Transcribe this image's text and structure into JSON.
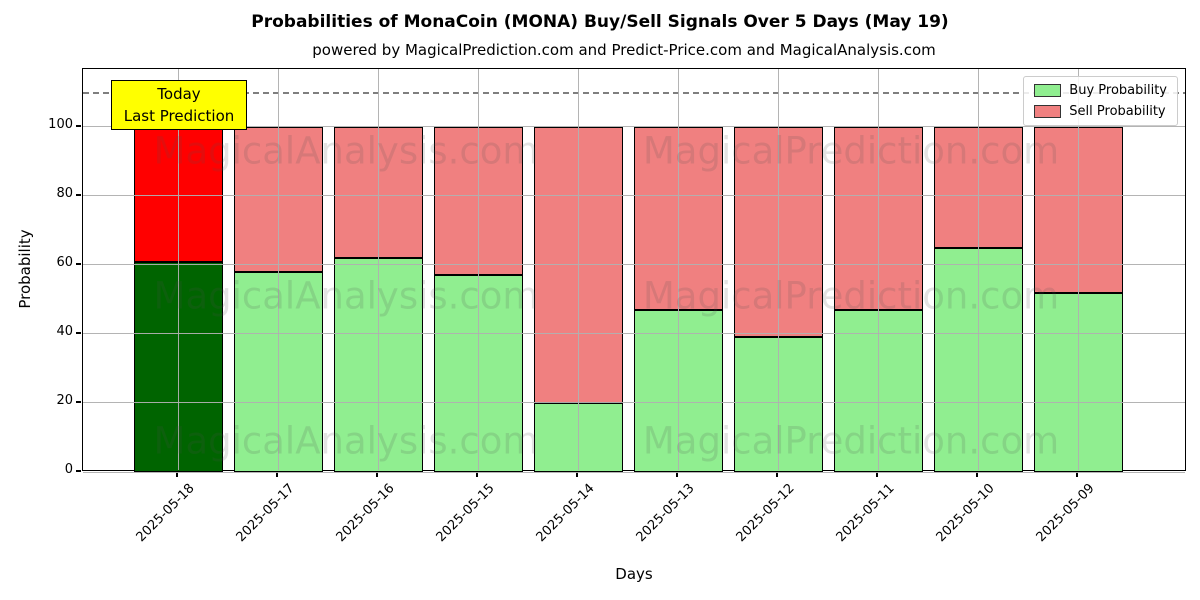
{
  "title": "Probabilities of MonaCoin (MONA) Buy/Sell Signals Over 5 Days (May 19)",
  "subtitle": "powered by MagicalPrediction.com and Predict-Price.com and MagicalAnalysis.com",
  "annotation": {
    "line1": "Today",
    "line2": "Last Prediction",
    "bg_color": "#ffff00"
  },
  "legend": [
    {
      "label": "Buy Probability",
      "color": "#90ee90"
    },
    {
      "label": "Sell Probability",
      "color": "#f08080"
    }
  ],
  "watermarks": {
    "texts": [
      "MagicalAnalysis.com",
      "MagicalPrediction.com"
    ]
  },
  "chart_data": {
    "type": "bar",
    "stacked": true,
    "title": "Probabilities of MonaCoin (MONA) Buy/Sell Signals Over 5 Days (May 19)",
    "xlabel": "Days",
    "ylabel": "Probability",
    "categories": [
      "2025-05-18",
      "2025-05-17",
      "2025-05-16",
      "2025-05-15",
      "2025-05-14",
      "2025-05-13",
      "2025-05-12",
      "2025-05-11",
      "2025-05-10",
      "2025-05-09"
    ],
    "series": [
      {
        "name": "Buy Probability",
        "values": [
          61,
          58,
          62,
          57,
          20,
          47,
          39,
          47,
          65,
          52
        ],
        "color": "#90ee90",
        "highlight_color": "#006400"
      },
      {
        "name": "Sell Probability",
        "values": [
          39,
          42,
          38,
          43,
          80,
          53,
          61,
          53,
          35,
          48
        ],
        "color": "#f08080",
        "highlight_color": "#ff0000"
      }
    ],
    "highlight_index": 0,
    "bar_edge_color": "#000000",
    "yticks": [
      0,
      20,
      40,
      60,
      80,
      100
    ],
    "ylim": [
      0,
      116.8
    ],
    "dashed_line_y": 110,
    "grid": true,
    "legend_position": "upper right"
  }
}
